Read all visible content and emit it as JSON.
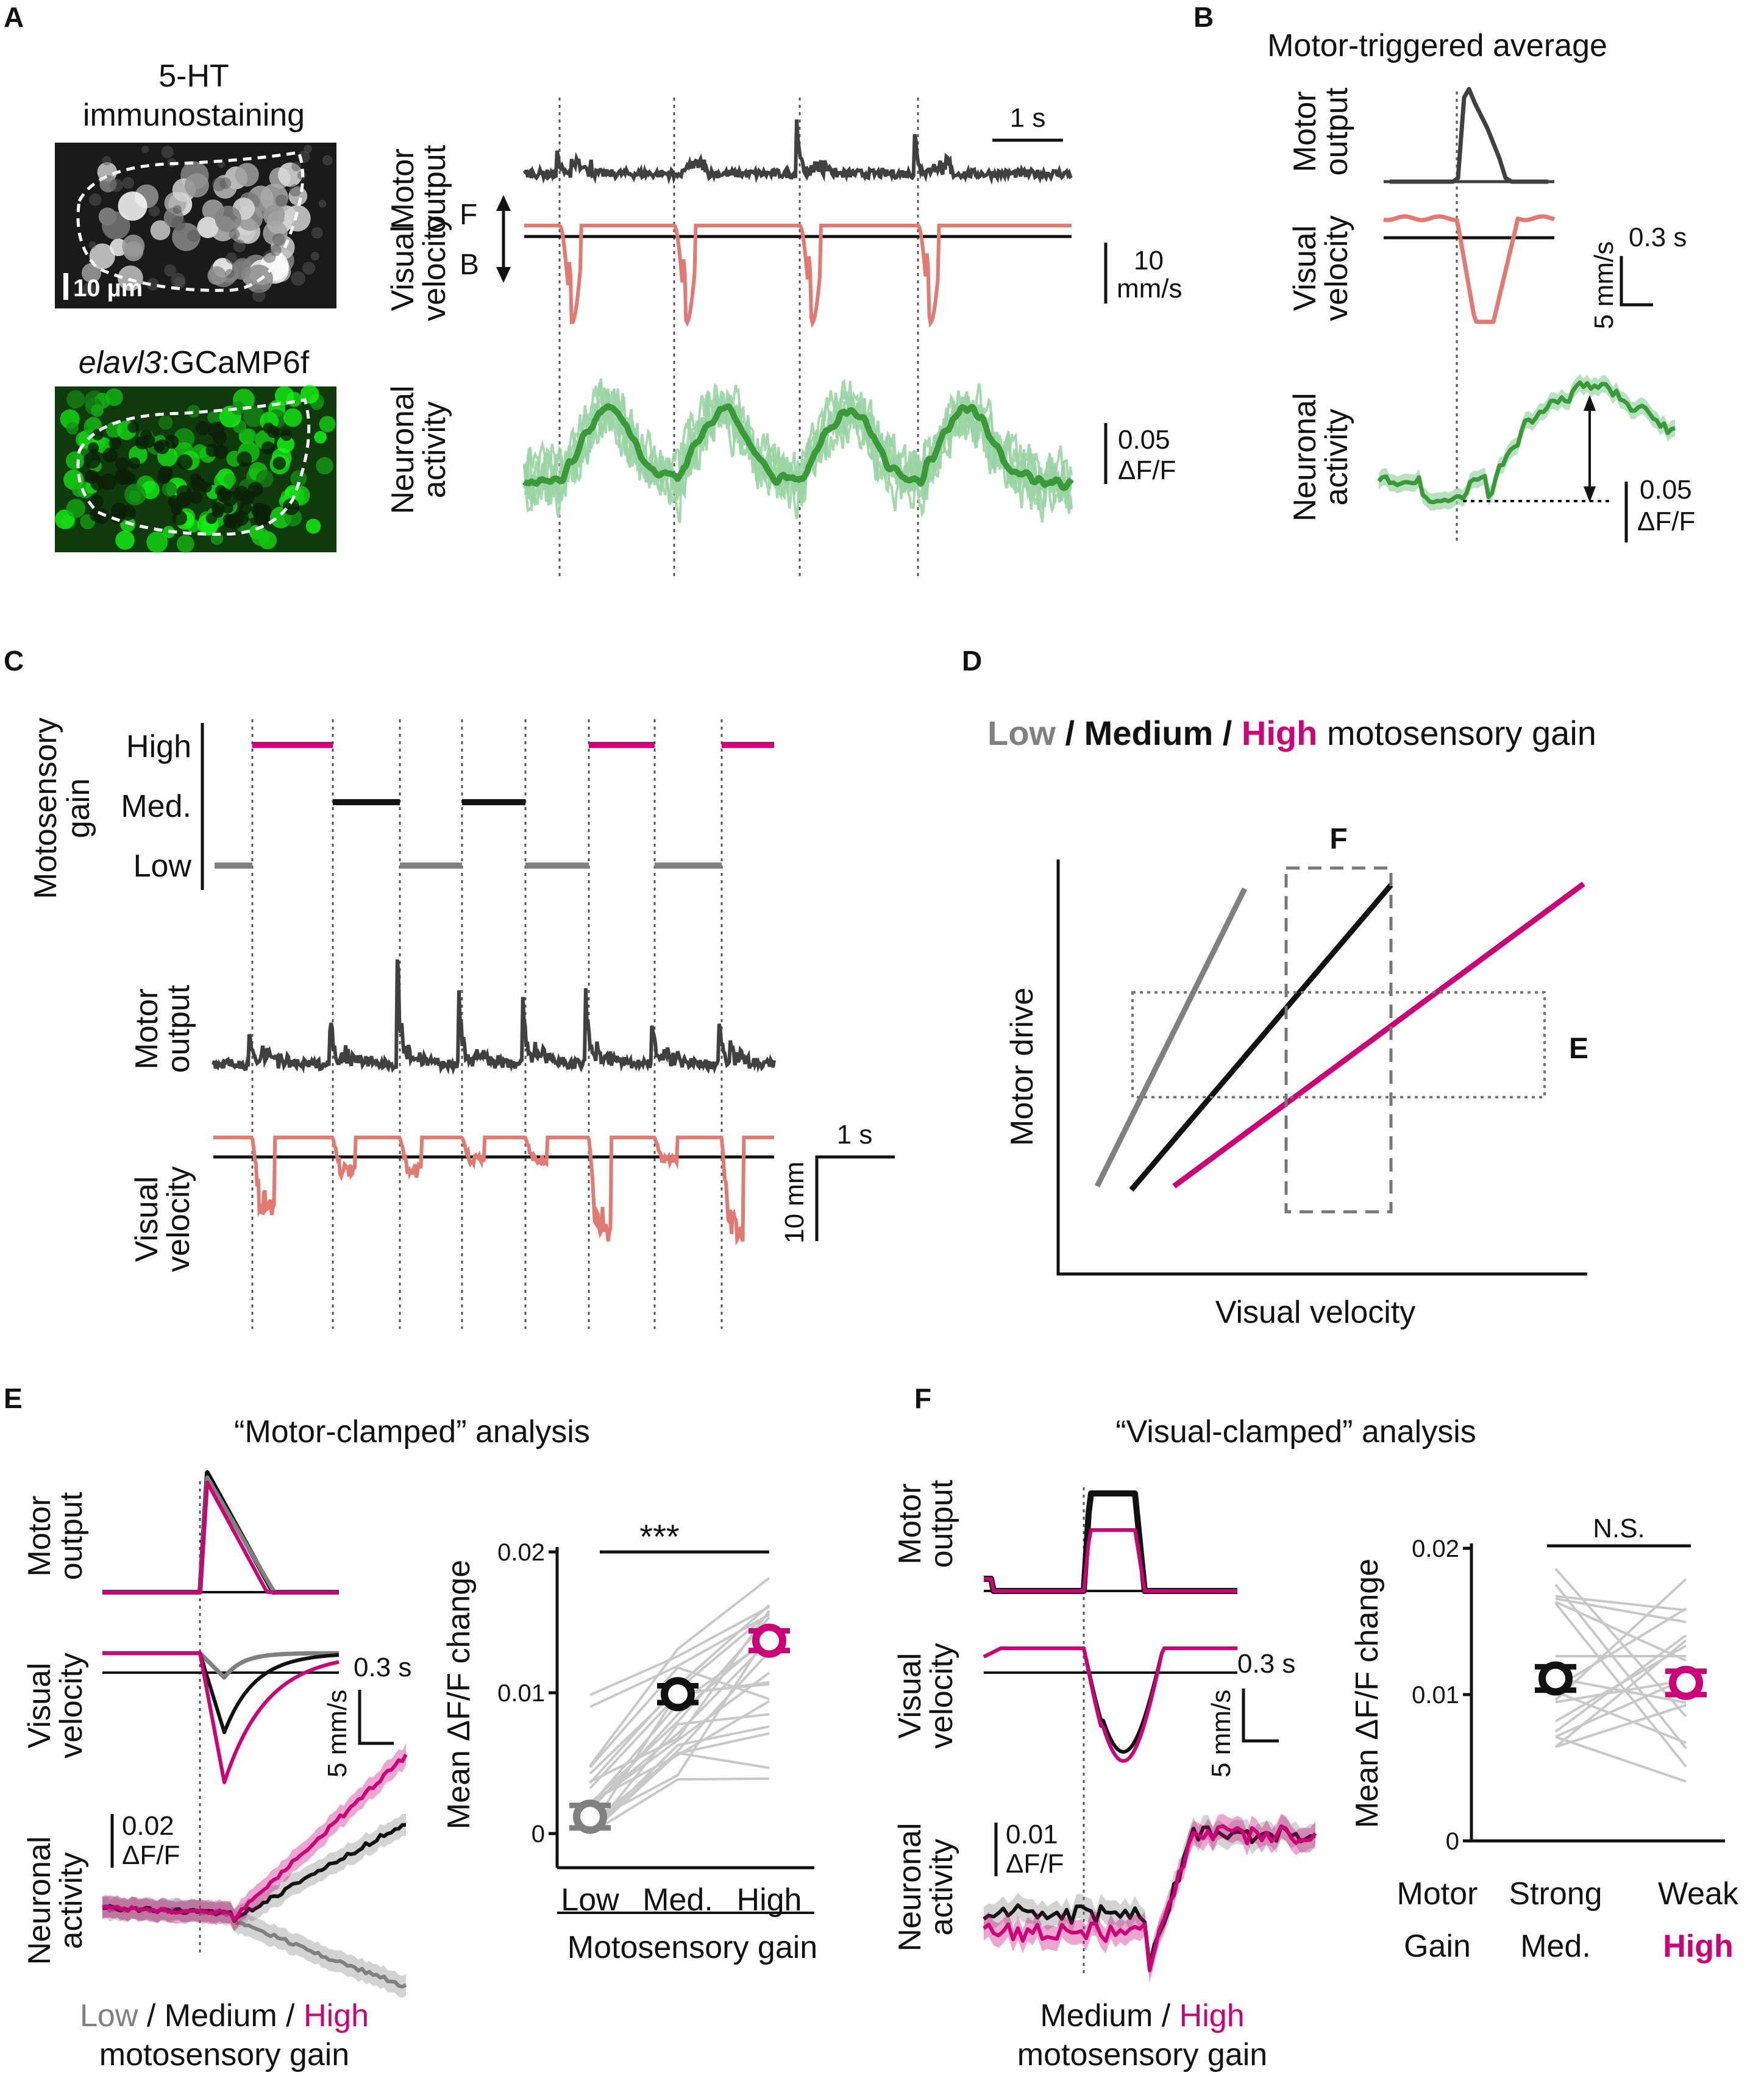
{
  "colors": {
    "motor": "#404040",
    "visual": "#e07a72",
    "neuron": "#3a9a3a",
    "neuron_light": "#9ad4a4",
    "low": "#808080",
    "medium": "#111111",
    "high": "#cc0077",
    "pair_lines": "#c8c8c8"
  },
  "panel_labels": {
    "a": "A",
    "b": "B",
    "c": "C",
    "d": "D",
    "e": "E",
    "f": "F"
  },
  "panel_a": {
    "stain_title_1": "5-HT",
    "stain_title_2": "immunostaining",
    "scale_bar": "10 µm",
    "gcamp_italic": "elavl3",
    "gcamp_rest": ":GCaMP6f",
    "row_motor_1": "Motor",
    "row_motor_2": "output",
    "row_visual_1": "Visual",
    "row_visual_2": "velocity",
    "row_neuron_1": "Neuronal",
    "row_neuron_2": "activity",
    "dir_forward": "F",
    "dir_backward": "B",
    "time_scale": "1 s",
    "vel_scale_1": "10",
    "vel_scale_2": "mm/s",
    "act_scale_1": "0.05",
    "act_scale_2": "ΔF/F"
  },
  "panel_b": {
    "title": "Motor-triggered average",
    "row_motor_1": "Motor",
    "row_motor_2": "output",
    "row_visual_1": "Visual",
    "row_visual_2": "velocity",
    "row_neuron_1": "Neuronal",
    "row_neuron_2": "activity",
    "vel_scale": "5 mm/s",
    "time_scale": "0.3 s",
    "act_scale_1": "0.05",
    "act_scale_2": "ΔF/F"
  },
  "panel_c": {
    "ylabel_1": "Motosensory",
    "ylabel_2": "gain",
    "level_high": "High",
    "level_med": "Med.",
    "level_low": "Low",
    "row_motor_1": "Motor",
    "row_motor_2": "output",
    "row_visual_1": "Visual",
    "row_visual_2": "velocity",
    "time_scale": "1 s",
    "vel_scale": "10 mm",
    "gain_sequence": [
      "Low",
      "High",
      "Medium",
      "Low",
      "Medium",
      "Low",
      "High",
      "Low",
      "High"
    ]
  },
  "panel_d": {
    "title_low": "Low",
    "title_sep1": " / ",
    "title_med": "Medium",
    "title_sep2": " / ",
    "title_high": "High",
    "title_rest": " motosensory gain",
    "xlabel": "Visual velocity",
    "ylabel": "Motor drive",
    "box_f": "F",
    "box_e": "E"
  },
  "panel_e": {
    "title": "“Motor-clamped” analysis",
    "row_motor_1": "Motor",
    "row_motor_2": "output",
    "row_visual_1": "Visual",
    "row_visual_2": "velocity",
    "row_neuron_1": "Neuronal",
    "row_neuron_2": "activity",
    "vel_scale": "5 mm/s",
    "time_scale": "0.3 s",
    "act_scale_1": "0.02",
    "act_scale_2": "ΔF/F",
    "legend_low": "Low",
    "legend_sep1": " / ",
    "legend_med": "Medium",
    "legend_sep2": " / ",
    "legend_high": "High",
    "legend_line2": "motosensory gain",
    "significance": "***",
    "ylabel": "Mean  ΔF/F change",
    "xlabel": "Motosensory gain",
    "xticks": [
      "Low",
      "Med.",
      "High"
    ],
    "yticks": [
      "0",
      "0.01",
      "0.02"
    ]
  },
  "panel_f": {
    "title": "“Visual-clamped” analysis",
    "row_motor_1": "Motor",
    "row_motor_2": "output",
    "row_visual_1": "Visual",
    "row_visual_2": "velocity",
    "row_neuron_1": "Neuronal",
    "row_neuron_2": "activity",
    "vel_scale": "5 mm/s",
    "time_scale": "0.3 s",
    "act_scale_1": "0.01",
    "act_scale_2": "ΔF/F",
    "legend_med": "Medium",
    "legend_sep": " / ",
    "legend_high": "High",
    "legend_line2": "motosensory gain",
    "significance": "N.S.",
    "ylabel": "Mean  ΔF/F change",
    "row_label_1": "Motor",
    "row_label_2": "Gain",
    "col1_1": "Strong",
    "col1_2": "Med.",
    "col2_1": "Weak",
    "col2_2": "High",
    "yticks": [
      "0",
      "0.01",
      "0.02"
    ]
  },
  "chart_data": [
    {
      "type": "scatter",
      "panel": "E",
      "categories": [
        "Low",
        "Med.",
        "High"
      ],
      "values": [
        0.0012,
        0.0099,
        0.0137
      ],
      "errors": [
        0.0008,
        0.0006,
        0.0007
      ],
      "ylim": [
        0,
        0.02
      ],
      "ylabel": "Mean  ΔF/F change",
      "xlabel": "Motosensory gain"
    },
    {
      "type": "scatter",
      "panel": "F",
      "categories": [
        "Med.",
        "High"
      ],
      "values": [
        0.0111,
        0.0108
      ],
      "errors": [
        0.0008,
        0.0008
      ],
      "ylim": [
        0,
        0.02
      ],
      "ylabel": "Mean  ΔF/F change"
    }
  ]
}
